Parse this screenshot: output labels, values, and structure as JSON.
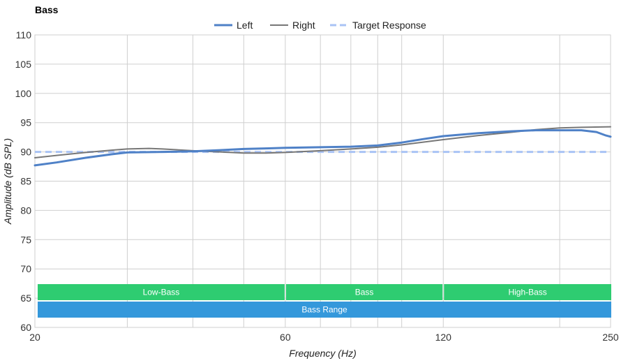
{
  "chart_data": {
    "type": "line",
    "title": "Bass",
    "xlabel": "Frequency (Hz)",
    "ylabel": "Amplitude (dB SPL)",
    "x_scale": "log",
    "xlim": [
      20,
      250
    ],
    "ylim": [
      60,
      110
    ],
    "x_tick_labels": [
      20,
      60,
      120,
      250
    ],
    "x_grid": [
      20,
      30,
      40,
      50,
      60,
      70,
      80,
      90,
      100,
      120,
      200,
      250
    ],
    "y_ticks": [
      60,
      65,
      70,
      75,
      80,
      85,
      90,
      95,
      100,
      105,
      110
    ],
    "grid": true,
    "legend_position": "top-center",
    "series": [
      {
        "name": "Left",
        "color": "#4f81c7",
        "style": "solid",
        "x": [
          20,
          22,
          25,
          28,
          30,
          35,
          40,
          45,
          50,
          55,
          60,
          70,
          80,
          90,
          100,
          110,
          120,
          140,
          160,
          180,
          200,
          220,
          235,
          245,
          250
        ],
        "y": [
          87.7,
          88.2,
          89.0,
          89.6,
          89.9,
          90.0,
          90.1,
          90.3,
          90.5,
          90.6,
          90.7,
          90.8,
          90.9,
          91.1,
          91.6,
          92.2,
          92.7,
          93.2,
          93.5,
          93.7,
          93.7,
          93.7,
          93.4,
          92.8,
          92.6
        ]
      },
      {
        "name": "Right",
        "color": "#777777",
        "style": "solid",
        "x": [
          20,
          22,
          25,
          28,
          30,
          33,
          35,
          40,
          45,
          50,
          55,
          60,
          70,
          80,
          90,
          100,
          120,
          140,
          160,
          180,
          200,
          220,
          250
        ],
        "y": [
          89.0,
          89.4,
          89.9,
          90.3,
          90.5,
          90.6,
          90.5,
          90.2,
          90.0,
          89.8,
          89.8,
          89.9,
          90.2,
          90.5,
          90.8,
          91.2,
          92.1,
          92.8,
          93.3,
          93.8,
          94.1,
          94.2,
          94.3
        ]
      },
      {
        "name": "Target Response",
        "color": "#a9c3f5",
        "style": "dashed",
        "x": [
          20,
          250
        ],
        "y": [
          90,
          90
        ]
      }
    ],
    "bands": [
      {
        "label": "Low-Bass",
        "x_start": 20,
        "x_end": 60,
        "color": "#2ecc71",
        "row": 1
      },
      {
        "label": "Bass",
        "x_start": 60,
        "x_end": 120,
        "color": "#2ecc71",
        "row": 1
      },
      {
        "label": "High-Bass",
        "x_start": 120,
        "x_end": 250,
        "color": "#2ecc71",
        "row": 1
      },
      {
        "label": "Bass Range",
        "x_start": 20,
        "x_end": 250,
        "color": "#3498db",
        "row": 2
      }
    ]
  }
}
